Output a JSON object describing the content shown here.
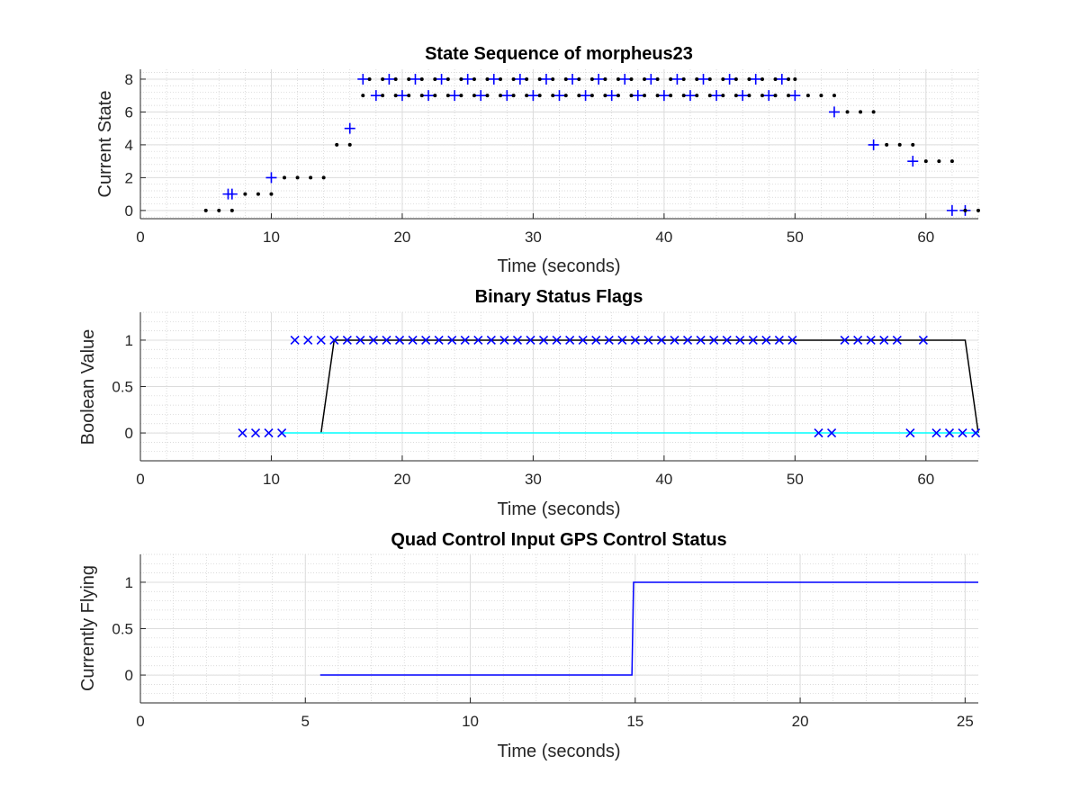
{
  "chart_data": [
    {
      "type": "scatter",
      "title": "State Sequence of morpheus23",
      "xlabel": "Time (seconds)",
      "ylabel": "Current State",
      "xlim": [
        0,
        64
      ],
      "ylim": [
        -0.5,
        8.6
      ],
      "xticks": [
        0,
        10,
        20,
        30,
        40,
        50,
        60
      ],
      "yticks": [
        0,
        2,
        4,
        6,
        8
      ],
      "grid": true,
      "minor_grid": true,
      "series": [
        {
          "marker": "+",
          "color": "#0000ff",
          "points": [
            [
              6.7,
              1
            ],
            [
              7.0,
              1
            ],
            [
              10.0,
              2
            ],
            [
              16.0,
              5
            ],
            [
              17.0,
              8
            ],
            [
              18.0,
              7
            ],
            [
              19.0,
              8
            ],
            [
              20.0,
              7
            ],
            [
              21.0,
              8
            ],
            [
              22.0,
              7
            ],
            [
              23.0,
              8
            ],
            [
              24.0,
              7
            ],
            [
              25.0,
              8
            ],
            [
              26.0,
              7
            ],
            [
              27.0,
              8
            ],
            [
              28.0,
              7
            ],
            [
              29.0,
              8
            ],
            [
              30.0,
              7
            ],
            [
              31.0,
              8
            ],
            [
              32.0,
              7
            ],
            [
              33.0,
              8
            ],
            [
              34.0,
              7
            ],
            [
              35.0,
              8
            ],
            [
              36.0,
              7
            ],
            [
              37.0,
              8
            ],
            [
              38.0,
              7
            ],
            [
              39.0,
              8
            ],
            [
              40.0,
              7
            ],
            [
              41.0,
              8
            ],
            [
              42.0,
              7
            ],
            [
              43.0,
              8
            ],
            [
              44.0,
              7
            ],
            [
              45.0,
              8
            ],
            [
              46.0,
              7
            ],
            [
              47.0,
              8
            ],
            [
              48.0,
              7
            ],
            [
              49.0,
              8
            ],
            [
              50.0,
              7
            ],
            [
              53.0,
              6
            ],
            [
              56.0,
              4
            ],
            [
              59.0,
              3
            ],
            [
              62.0,
              0
            ],
            [
              63.0,
              0
            ]
          ]
        },
        {
          "marker": ".",
          "color": "#000000",
          "points": [
            [
              5.0,
              0
            ],
            [
              6.0,
              0
            ],
            [
              7.0,
              0
            ],
            [
              8.0,
              1
            ],
            [
              9.0,
              1
            ],
            [
              10.0,
              1
            ],
            [
              11.0,
              2
            ],
            [
              12.0,
              2
            ],
            [
              13.0,
              2
            ],
            [
              14.0,
              2
            ],
            [
              15.0,
              4
            ],
            [
              16.0,
              4
            ],
            [
              17.5,
              8
            ],
            [
              18.5,
              8
            ],
            [
              19.5,
              8
            ],
            [
              20.5,
              8
            ],
            [
              21.5,
              8
            ],
            [
              22.5,
              8
            ],
            [
              23.5,
              8
            ],
            [
              24.5,
              8
            ],
            [
              25.5,
              8
            ],
            [
              26.5,
              8
            ],
            [
              27.5,
              8
            ],
            [
              28.5,
              8
            ],
            [
              29.5,
              8
            ],
            [
              30.5,
              8
            ],
            [
              31.5,
              8
            ],
            [
              32.5,
              8
            ],
            [
              33.5,
              8
            ],
            [
              34.5,
              8
            ],
            [
              35.5,
              8
            ],
            [
              36.5,
              8
            ],
            [
              37.5,
              8
            ],
            [
              38.5,
              8
            ],
            [
              39.5,
              8
            ],
            [
              40.5,
              8
            ],
            [
              41.5,
              8
            ],
            [
              42.5,
              8
            ],
            [
              43.5,
              8
            ],
            [
              44.5,
              8
            ],
            [
              45.5,
              8
            ],
            [
              46.5,
              8
            ],
            [
              47.5,
              8
            ],
            [
              48.5,
              8
            ],
            [
              49.5,
              8
            ],
            [
              50.0,
              8
            ],
            [
              17.0,
              7
            ],
            [
              18.5,
              7
            ],
            [
              19.5,
              7
            ],
            [
              20.5,
              7
            ],
            [
              21.5,
              7
            ],
            [
              22.5,
              7
            ],
            [
              23.5,
              7
            ],
            [
              24.5,
              7
            ],
            [
              25.5,
              7
            ],
            [
              26.5,
              7
            ],
            [
              27.5,
              7
            ],
            [
              28.5,
              7
            ],
            [
              29.5,
              7
            ],
            [
              30.5,
              7
            ],
            [
              31.5,
              7
            ],
            [
              32.5,
              7
            ],
            [
              33.5,
              7
            ],
            [
              34.5,
              7
            ],
            [
              35.5,
              7
            ],
            [
              36.5,
              7
            ],
            [
              37.5,
              7
            ],
            [
              38.5,
              7
            ],
            [
              39.5,
              7
            ],
            [
              40.5,
              7
            ],
            [
              41.5,
              7
            ],
            [
              42.5,
              7
            ],
            [
              43.5,
              7
            ],
            [
              44.5,
              7
            ],
            [
              45.5,
              7
            ],
            [
              46.5,
              7
            ],
            [
              47.5,
              7
            ],
            [
              48.5,
              7
            ],
            [
              49.5,
              7
            ],
            [
              51.0,
              7
            ],
            [
              52.0,
              7
            ],
            [
              53.0,
              7
            ],
            [
              54.0,
              6
            ],
            [
              55.0,
              6
            ],
            [
              56.0,
              6
            ],
            [
              57.0,
              4
            ],
            [
              58.0,
              4
            ],
            [
              59.0,
              4
            ],
            [
              60.0,
              3
            ],
            [
              61.0,
              3
            ],
            [
              62.0,
              3
            ],
            [
              63.0,
              0
            ],
            [
              64.0,
              0
            ]
          ]
        }
      ]
    },
    {
      "type": "line",
      "title": "Binary Status Flags",
      "xlabel": "Time (seconds)",
      "ylabel": "Boolean Value",
      "xlim": [
        0,
        64
      ],
      "ylim": [
        -0.3,
        1.3
      ],
      "xticks": [
        0,
        10,
        20,
        30,
        40,
        50,
        60
      ],
      "yticks": [
        0,
        0.5,
        1
      ],
      "ytick_labels": [
        "0",
        "0.5",
        "1"
      ],
      "grid": true,
      "minor_grid": true,
      "series": [
        {
          "style": "line",
          "color": "#000000",
          "x": [
            13.8,
            14.8,
            63.0,
            64.0
          ],
          "y": [
            0,
            1,
            1,
            0
          ]
        },
        {
          "style": "line",
          "color": "#00ffff",
          "x": [
            10.8,
            64.0
          ],
          "y": [
            0,
            0
          ]
        },
        {
          "marker": "x",
          "color": "#0000ff",
          "points": [
            [
              7.8,
              0
            ],
            [
              8.8,
              0
            ],
            [
              9.8,
              0
            ],
            [
              10.8,
              0
            ],
            [
              11.8,
              1
            ],
            [
              12.8,
              1
            ],
            [
              13.8,
              1
            ],
            [
              14.8,
              1
            ],
            [
              15.8,
              1
            ],
            [
              16.8,
              1
            ],
            [
              17.8,
              1
            ],
            [
              18.8,
              1
            ],
            [
              19.8,
              1
            ],
            [
              20.8,
              1
            ],
            [
              21.8,
              1
            ],
            [
              22.8,
              1
            ],
            [
              23.8,
              1
            ],
            [
              24.8,
              1
            ],
            [
              25.8,
              1
            ],
            [
              26.8,
              1
            ],
            [
              27.8,
              1
            ],
            [
              28.8,
              1
            ],
            [
              29.8,
              1
            ],
            [
              30.8,
              1
            ],
            [
              31.8,
              1
            ],
            [
              32.8,
              1
            ],
            [
              33.8,
              1
            ],
            [
              34.8,
              1
            ],
            [
              35.8,
              1
            ],
            [
              36.8,
              1
            ],
            [
              37.8,
              1
            ],
            [
              38.8,
              1
            ],
            [
              39.8,
              1
            ],
            [
              40.8,
              1
            ],
            [
              41.8,
              1
            ],
            [
              42.8,
              1
            ],
            [
              43.8,
              1
            ],
            [
              44.8,
              1
            ],
            [
              45.8,
              1
            ],
            [
              46.8,
              1
            ],
            [
              47.8,
              1
            ],
            [
              48.8,
              1
            ],
            [
              49.8,
              1
            ],
            [
              51.8,
              0
            ],
            [
              52.8,
              0
            ],
            [
              53.8,
              1
            ],
            [
              54.8,
              1
            ],
            [
              55.8,
              1
            ],
            [
              56.8,
              1
            ],
            [
              57.8,
              1
            ],
            [
              58.8,
              0
            ],
            [
              59.8,
              1
            ],
            [
              60.8,
              0
            ],
            [
              61.8,
              0
            ],
            [
              62.8,
              0
            ],
            [
              63.8,
              0
            ]
          ]
        }
      ]
    },
    {
      "type": "line",
      "title": "Quad Control Input GPS Control Status",
      "xlabel": "Time (seconds)",
      "ylabel": "Currently Flying",
      "xlim": [
        0,
        25.4
      ],
      "ylim": [
        -0.3,
        1.3
      ],
      "xticks": [
        0,
        5,
        10,
        15,
        20,
        25
      ],
      "yticks": [
        0,
        0.5,
        1
      ],
      "ytick_labels": [
        "0",
        "0.5",
        "1"
      ],
      "grid": true,
      "minor_grid": true,
      "series": [
        {
          "style": "line",
          "color": "#0000ff",
          "x": [
            5.45,
            14.9,
            14.95,
            25.4
          ],
          "y": [
            0,
            0,
            1,
            1
          ]
        }
      ]
    }
  ]
}
